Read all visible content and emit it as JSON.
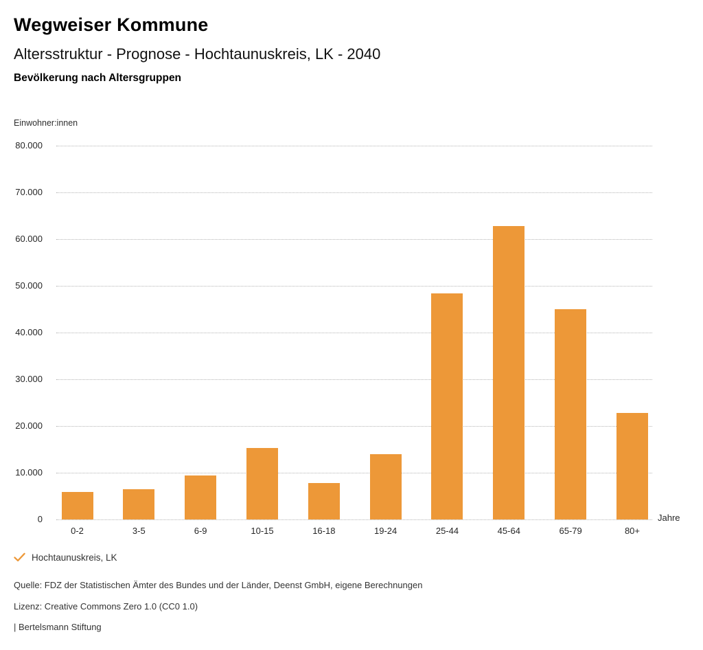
{
  "header": {
    "title": "Wegweiser Kommune",
    "subtitle": "Altersstruktur - Prognose - Hochtaunuskreis, LK - 2040",
    "section_title": "Bevölkerung nach Altersgruppen"
  },
  "chart_data": {
    "type": "bar",
    "title": "Bevölkerung nach Altersgruppen",
    "categories": [
      "0-2",
      "3-5",
      "6-9",
      "10-15",
      "16-18",
      "19-24",
      "25-44",
      "45-64",
      "65-79",
      "80+"
    ],
    "values": [
      5900,
      6500,
      9400,
      15300,
      7800,
      14000,
      48400,
      62800,
      45000,
      22800
    ],
    "series_name": "Hochtaunuskreis, LK",
    "ylabel": "Einwohner:innen",
    "xlabel": "Jahre",
    "ylim": [
      0,
      80000
    ],
    "ytick_step": 10000,
    "ytick_labels": [
      "0",
      "10.000",
      "20.000",
      "30.000",
      "40.000",
      "50.000",
      "60.000",
      "70.000",
      "80.000"
    ],
    "grid": "horizontal dotted",
    "legend_position": "bottom-left",
    "bar_color": "#ED9838"
  },
  "legend": {
    "marker": "check-icon",
    "marker_color": "#ED9838",
    "label": "Hochtaunuskreis, LK"
  },
  "footer": {
    "source": "Quelle: FDZ der Statistischen Ämter des Bundes und der Länder, Deenst GmbH, eigene Berechnungen",
    "license": "Lizenz: Creative Commons Zero 1.0 (CC0 1.0)",
    "attribution": "| Bertelsmann Stiftung"
  },
  "colors": {
    "bar": "#ED9838",
    "grid": "#B4B4B4",
    "text": "#262626"
  }
}
